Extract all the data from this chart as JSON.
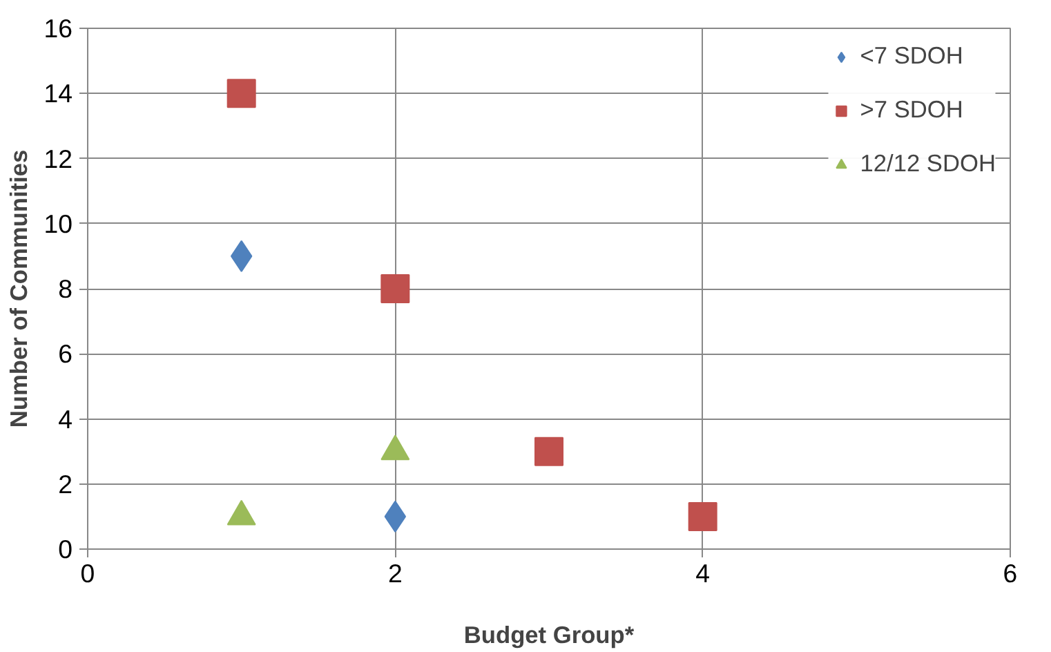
{
  "chart_data": {
    "type": "scatter",
    "xlabel": "Budget Group*",
    "ylabel": "Number of Communities",
    "xlim": [
      0,
      6
    ],
    "xticks": [
      0,
      2,
      4,
      6
    ],
    "ylim": [
      0,
      16
    ],
    "yticks": [
      0,
      2,
      4,
      6,
      8,
      10,
      12,
      14,
      16
    ],
    "grid": true,
    "legend": "top right",
    "series": [
      {
        "name": "<7 SDOH",
        "color": "#4f81bd",
        "marker": "diamond",
        "x": [
          1,
          2
        ],
        "values": [
          9,
          1
        ]
      },
      {
        "name": ">7 SDOH",
        "color": "#c0504d",
        "marker": "square",
        "x": [
          1,
          2,
          3,
          4
        ],
        "values": [
          14,
          8,
          3,
          1
        ]
      },
      {
        "name": "12/12 SDOH",
        "color": "#9bbb59",
        "marker": "triangle",
        "x": [
          1,
          2
        ],
        "values": [
          1,
          3
        ]
      }
    ]
  }
}
